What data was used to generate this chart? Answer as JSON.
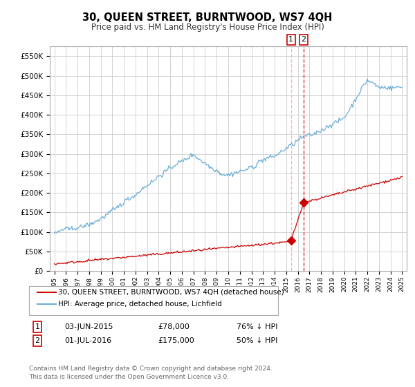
{
  "title": "30, QUEEN STREET, BURNTWOOD, WS7 4QH",
  "subtitle": "Price paid vs. HM Land Registry's House Price Index (HPI)",
  "hpi_color": "#6baed6",
  "price_color": "#cc0000",
  "dashed_color": "#cc0000",
  "legend1": "30, QUEEN STREET, BURNTWOOD, WS7 4QH (detached house)",
  "legend2": "HPI: Average price, detached house, Lichfield",
  "transaction1_date": "03-JUN-2015",
  "transaction1_price": "£78,000",
  "transaction1_pct": "76% ↓ HPI",
  "transaction2_date": "01-JUL-2016",
  "transaction2_price": "£175,000",
  "transaction2_pct": "50% ↓ HPI",
  "footnote": "Contains HM Land Registry data © Crown copyright and database right 2024.\nThis data is licensed under the Open Government Licence v3.0.",
  "ylim": [
    0,
    575000
  ],
  "yticks": [
    0,
    50000,
    100000,
    150000,
    200000,
    250000,
    300000,
    350000,
    400000,
    450000,
    500000,
    550000
  ],
  "background_color": "#ffffff",
  "grid_color": "#cccccc",
  "t1_x": 2015.42,
  "t1_y": 78000,
  "t2_x": 2016.5,
  "t2_y": 175000,
  "xmin": 1994.6,
  "xmax": 2025.4
}
